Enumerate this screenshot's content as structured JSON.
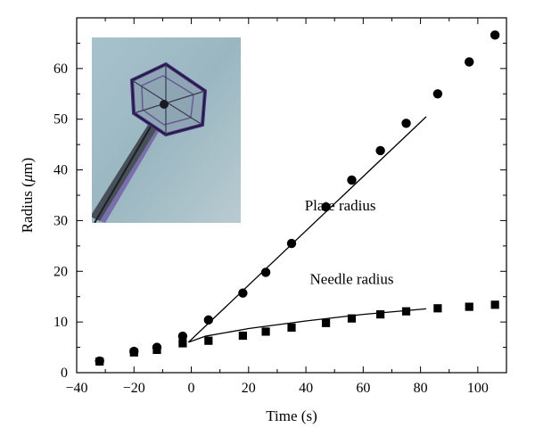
{
  "chart_data": {
    "type": "scatter",
    "title": "",
    "xlabel": "Time (s)",
    "ylabel_prefix": "Radius (",
    "ylabel_mu": "μ",
    "ylabel_suffix": "m)",
    "xlim": [
      -40,
      110
    ],
    "ylim": [
      0,
      70
    ],
    "x_ticks": [
      -40,
      -20,
      0,
      20,
      40,
      60,
      80,
      100
    ],
    "y_ticks": [
      0,
      10,
      20,
      30,
      40,
      50,
      60
    ],
    "grid": false,
    "inset_image": "hexagonal-plate-crystal-on-needle-photo",
    "annotations": [
      {
        "text": "Plate radius",
        "x": 52,
        "y": 32
      },
      {
        "text": "Needle radius",
        "x": 56,
        "y": 17.5
      }
    ],
    "series": [
      {
        "marker": "circle",
        "x": [
          -32,
          -20,
          -12,
          -3,
          6,
          18,
          26,
          35,
          47,
          56,
          66,
          75,
          86,
          97,
          106
        ],
        "y": [
          2.3,
          4.2,
          5.0,
          7.2,
          10.4,
          15.7,
          19.8,
          25.5,
          32.7,
          38.0,
          43.8,
          49.2,
          55.0,
          61.3,
          66.6
        ]
      },
      {
        "marker": "square",
        "x": [
          -32,
          -20,
          -12,
          -3,
          6,
          18,
          26,
          35,
          47,
          56,
          66,
          75,
          86,
          97,
          106
        ],
        "y": [
          2.2,
          4.0,
          4.5,
          5.8,
          6.3,
          7.3,
          8.1,
          8.9,
          9.8,
          10.7,
          11.5,
          12.1,
          12.7,
          13.0,
          13.4
        ]
      }
    ],
    "fit_lines": [
      {
        "name": "plate-fit",
        "x": [
          -1,
          82
        ],
        "y": [
          6.0,
          50.5
        ]
      },
      {
        "name": "needle-fit",
        "x": [
          -1,
          5,
          20,
          40,
          60,
          82
        ],
        "y": [
          6.0,
          7.2,
          8.7,
          10.2,
          11.5,
          12.6
        ]
      }
    ]
  }
}
